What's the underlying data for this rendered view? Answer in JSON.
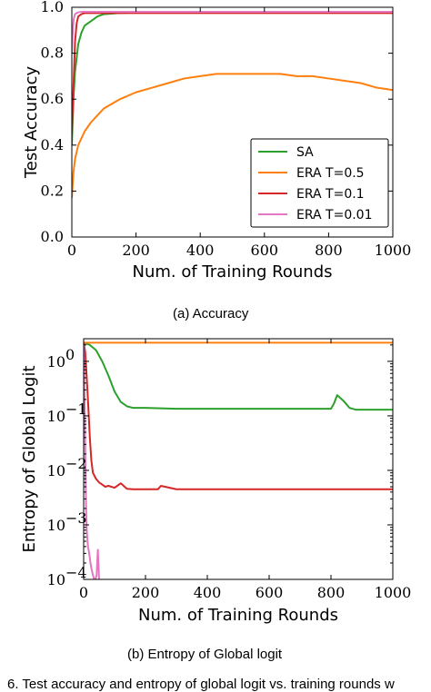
{
  "captions": {
    "a": "(a) Accuracy",
    "b": "(b) Entropy of Global logit",
    "figure": "6. Test accuracy and entropy of global logit vs. training rounds w"
  },
  "colors": {
    "SA": "#2ca02c",
    "ERA T=0.5": "#ff7f0e",
    "ERA T=0.1": "#d62728",
    "ERA T=0.01": "#e377c2"
  },
  "chart_data": [
    {
      "type": "line",
      "xlabel": "Num. of Training Rounds",
      "ylabel": "Test Accuracy",
      "xlim": [
        0,
        1000
      ],
      "ylim": [
        0.0,
        1.0
      ],
      "xticks": [
        "0",
        "200",
        "400",
        "600",
        "800",
        "1000"
      ],
      "yticks": [
        "0.0",
        "0.2",
        "0.4",
        "0.6",
        "0.8",
        "1.0"
      ],
      "legend_position": "lower-right",
      "series": [
        {
          "name": "SA",
          "x": [
            0,
            5,
            10,
            20,
            30,
            40,
            50,
            60,
            80,
            100,
            150,
            200,
            300,
            400,
            600,
            800,
            1000
          ],
          "y": [
            0.4,
            0.6,
            0.72,
            0.84,
            0.89,
            0.92,
            0.93,
            0.94,
            0.96,
            0.97,
            0.975,
            0.978,
            0.978,
            0.979,
            0.98,
            0.98,
            0.98
          ]
        },
        {
          "name": "ERA T=0.5",
          "x": [
            0,
            5,
            10,
            20,
            40,
            60,
            80,
            100,
            150,
            200,
            250,
            300,
            350,
            400,
            450,
            500,
            550,
            600,
            650,
            700,
            750,
            800,
            850,
            900,
            950,
            1000
          ],
          "y": [
            0.17,
            0.28,
            0.34,
            0.4,
            0.46,
            0.5,
            0.53,
            0.56,
            0.6,
            0.63,
            0.65,
            0.67,
            0.69,
            0.7,
            0.71,
            0.71,
            0.71,
            0.71,
            0.71,
            0.7,
            0.7,
            0.69,
            0.68,
            0.67,
            0.65,
            0.64
          ]
        },
        {
          "name": "ERA T=0.1",
          "x": [
            0,
            5,
            10,
            15,
            20,
            30,
            40,
            60,
            100,
            200,
            400,
            600,
            800,
            1000
          ],
          "y": [
            0.45,
            0.65,
            0.85,
            0.93,
            0.96,
            0.97,
            0.975,
            0.975,
            0.975,
            0.975,
            0.975,
            0.975,
            0.975,
            0.975
          ]
        },
        {
          "name": "ERA T=0.01",
          "x": [
            0,
            3,
            6,
            10,
            15,
            20,
            30,
            50,
            100,
            200,
            400,
            600,
            800,
            1000
          ],
          "y": [
            0.8,
            0.9,
            0.95,
            0.97,
            0.975,
            0.978,
            0.98,
            0.98,
            0.98,
            0.98,
            0.98,
            0.98,
            0.98,
            0.98
          ]
        }
      ]
    },
    {
      "type": "line",
      "xlabel": "Num. of Training Rounds",
      "ylabel": "Entropy of Global Logit",
      "xlim": [
        0,
        1000
      ],
      "ylim": [
        0.0001,
        2.6
      ],
      "yscale": "log",
      "xticks": [
        "0",
        "200",
        "400",
        "600",
        "800",
        "1000"
      ],
      "yticks": [
        {
          "base": "10",
          "exp": "0"
        },
        {
          "base": "10",
          "exp": "−1"
        },
        {
          "base": "10",
          "exp": "−2"
        },
        {
          "base": "10",
          "exp": "−3"
        },
        {
          "base": "10",
          "exp": "−4"
        }
      ],
      "series": [
        {
          "name": "SA",
          "x": [
            0,
            20,
            40,
            60,
            80,
            100,
            120,
            140,
            160,
            200,
            300,
            400,
            500,
            600,
            700,
            800,
            810,
            820,
            840,
            860,
            880,
            900,
            1000
          ],
          "y": [
            2.2,
            2.0,
            1.6,
            1.0,
            0.55,
            0.28,
            0.18,
            0.15,
            0.14,
            0.14,
            0.135,
            0.135,
            0.135,
            0.135,
            0.135,
            0.135,
            0.17,
            0.24,
            0.19,
            0.14,
            0.13,
            0.13,
            0.13
          ]
        },
        {
          "name": "ERA T=0.5",
          "x": [
            0,
            100,
            200,
            400,
            600,
            800,
            1000
          ],
          "y": [
            2.2,
            2.2,
            2.2,
            2.2,
            2.2,
            2.2,
            2.2
          ]
        },
        {
          "name": "ERA T=0.1",
          "x": [
            0,
            5,
            10,
            15,
            20,
            25,
            30,
            40,
            50,
            60,
            70,
            80,
            100,
            120,
            140,
            160,
            200,
            240,
            250,
            300,
            400,
            600,
            800,
            1000
          ],
          "y": [
            2.2,
            1.5,
            0.5,
            0.15,
            0.04,
            0.015,
            0.009,
            0.007,
            0.006,
            0.0055,
            0.005,
            0.0052,
            0.0048,
            0.0058,
            0.0046,
            0.0045,
            0.0045,
            0.0045,
            0.0052,
            0.0045,
            0.0045,
            0.0045,
            0.0045,
            0.0045
          ]
        },
        {
          "name": "ERA T=0.01",
          "x": [
            0,
            2,
            4,
            6,
            8,
            10,
            14,
            18,
            22,
            26,
            30,
            34,
            38,
            42,
            46,
            50
          ],
          "y": [
            2.0,
            0.5,
            0.08,
            0.01,
            0.002,
            0.0008,
            0.0004,
            0.0003,
            0.0002,
            0.00015,
            0.00012,
            0.0001,
            0.0001,
            0.00012,
            0.00035,
            0.0001
          ]
        }
      ]
    }
  ]
}
